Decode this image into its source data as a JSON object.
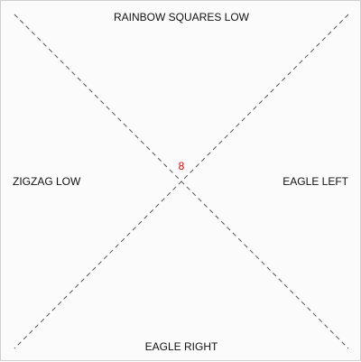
{
  "card": {
    "top_label": "RAINBOW SQUARES LOW",
    "bottom_label": "EAGLE RIGHT",
    "left_label": "ZIGZAG LOW",
    "right_label": "EAGLE LEFT",
    "center_number": "8"
  },
  "colors": {
    "background": "#fbfbfb",
    "border": "#cfcfcf",
    "diagonal": "#555555",
    "label_text": "#111111",
    "center_number": "#e00000"
  }
}
